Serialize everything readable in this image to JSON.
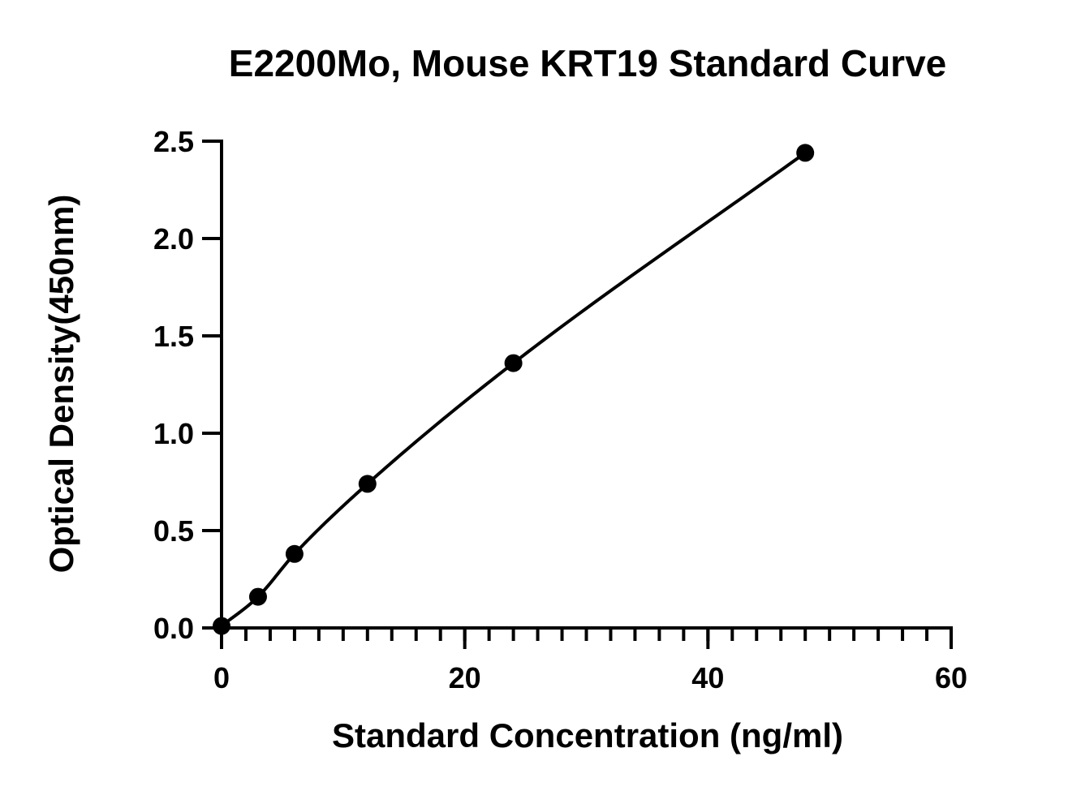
{
  "chart_data": {
    "type": "scatter",
    "title": "E2200Mo, Mouse KRT19 Standard Curve",
    "xlabel": "Standard Concentration (ng/ml)",
    "ylabel": "Optical Density(450nm)",
    "xlim": [
      0,
      60
    ],
    "ylim": [
      0,
      2.5
    ],
    "x_ticks": [
      "0",
      "20",
      "40",
      "60"
    ],
    "y_ticks": [
      "0.0",
      "0.5",
      "1.0",
      "1.5",
      "2.0",
      "2.5"
    ],
    "x_minor_step": 2,
    "grid": false,
    "legend": "none",
    "series": [
      {
        "x": [
          0,
          3,
          6,
          12,
          24,
          48
        ],
        "y": [
          0.01,
          0.16,
          0.38,
          0.74,
          1.36,
          2.44
        ],
        "fit": "smooth-curve"
      }
    ],
    "colors": {
      "marks": "#000000",
      "axes": "#000000"
    }
  }
}
